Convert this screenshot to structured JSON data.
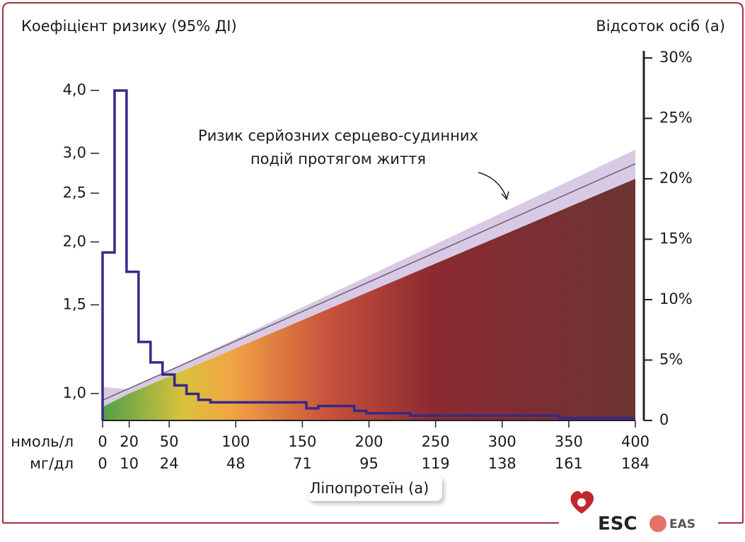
{
  "chart_data": {
    "type": "line",
    "y_label": "Коефіцієнт ризику (95% ДІ)",
    "y2_label": "Відсоток осіб (а)",
    "x_label": "Ліпопротеїн (а)",
    "x_unit_labels": [
      "нмоль/л",
      "мг/дл"
    ],
    "annotation": [
      "Ризик серйозних серцево-судинних",
      "подій протягом життя"
    ],
    "xlim": [
      0,
      400
    ],
    "xticks": [
      0,
      20,
      50,
      100,
      150,
      200,
      250,
      300,
      350,
      400
    ],
    "xticks_mgdl": [
      0,
      10,
      24,
      48,
      71,
      95,
      119,
      138,
      161,
      184
    ],
    "ylim": [
      0.884,
      4.64
    ],
    "log_y": true,
    "yticks": [
      {
        "value": 1,
        "label": "1,0"
      },
      {
        "value": 1.5,
        "label": "1,5"
      },
      {
        "value": 2,
        "label": "2,0"
      },
      {
        "value": 2.5,
        "label": "2,5"
      },
      {
        "value": 3,
        "label": "3,0"
      },
      {
        "value": 4,
        "label": "4,0"
      }
    ],
    "y2lim": [
      0,
      30
    ],
    "y2ticks": [
      0,
      {
        "value": 5,
        "label": "5%"
      },
      {
        "value": 10,
        "label": "10%"
      },
      {
        "value": 15,
        "label": "15%"
      },
      {
        "value": 20,
        "label": "20%"
      },
      {
        "value": 25,
        "label": "25%"
      },
      {
        "value": 30,
        "label": "30%"
      }
    ],
    "series": [
      {
        "type": "band",
        "x": [
          0,
          20,
          400
        ],
        "upper": [
          1.03,
          1.02,
          3.05
        ],
        "lower": [
          0.94,
          1.0,
          2.67
        ],
        "color": "#d8cae4"
      },
      {
        "type": "line",
        "x": [
          0,
          400
        ],
        "values": [
          0.97,
          2.86
        ],
        "color": "#6a6070"
      },
      {
        "type": "histogram",
        "axis": "y2",
        "bins": [
          0,
          9,
          18,
          27,
          36,
          45,
          54,
          63,
          72,
          81,
          153,
          162,
          189,
          198,
          231,
          343,
          400
        ],
        "values": [
          13.9,
          27.3,
          12.3,
          6.5,
          4.8,
          3.8,
          2.9,
          2.2,
          1.7,
          1.5,
          1.0,
          1.2,
          0.8,
          0.6,
          0.4,
          0.2
        ],
        "color": "#352a8a"
      }
    ]
  },
  "logos": {
    "esc": "ESC",
    "eas": "EAS"
  }
}
